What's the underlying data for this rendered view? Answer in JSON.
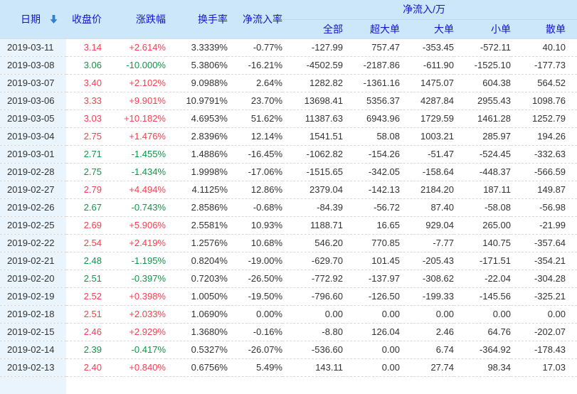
{
  "colors": {
    "up": "#fa3e4d",
    "down": "#0d9748",
    "header_bg": "#cde7fa",
    "header_text": "#1414cc",
    "date_col_bg": "#e9f4fd",
    "arrow": "#2e7fd2"
  },
  "header": {
    "date": "日期",
    "sort_icon": "descending-arrow",
    "close": "收盘价",
    "change": "涨跌幅",
    "turnover": "换手率",
    "inflow_rate": "净流入率",
    "inflow_group": "净流入/万",
    "sub_all": "全部",
    "sub_super_large": "超大单",
    "sub_large": "大单",
    "sub_small": "小单",
    "sub_retail": "散单"
  },
  "rows": [
    {
      "date": "2019-03-11",
      "close": "3.14",
      "change": "+2.614%",
      "turnover": "3.3339%",
      "inflow_rate": "-0.77%",
      "all": "-127.99",
      "super_large": "757.47",
      "large": "-353.45",
      "small": "-572.11",
      "retail": "40.10"
    },
    {
      "date": "2019-03-08",
      "close": "3.06",
      "change": "-10.000%",
      "turnover": "5.3806%",
      "inflow_rate": "-16.21%",
      "all": "-4502.59",
      "super_large": "-2187.86",
      "large": "-611.90",
      "small": "-1525.10",
      "retail": "-177.73"
    },
    {
      "date": "2019-03-07",
      "close": "3.40",
      "change": "+2.102%",
      "turnover": "9.0988%",
      "inflow_rate": "2.64%",
      "all": "1282.82",
      "super_large": "-1361.16",
      "large": "1475.07",
      "small": "604.38",
      "retail": "564.52"
    },
    {
      "date": "2019-03-06",
      "close": "3.33",
      "change": "+9.901%",
      "turnover": "10.9791%",
      "inflow_rate": "23.70%",
      "all": "13698.41",
      "super_large": "5356.37",
      "large": "4287.84",
      "small": "2955.43",
      "retail": "1098.76"
    },
    {
      "date": "2019-03-05",
      "close": "3.03",
      "change": "+10.182%",
      "turnover": "4.6953%",
      "inflow_rate": "51.62%",
      "all": "11387.63",
      "super_large": "6943.96",
      "large": "1729.59",
      "small": "1461.28",
      "retail": "1252.79"
    },
    {
      "date": "2019-03-04",
      "close": "2.75",
      "change": "+1.476%",
      "turnover": "2.8396%",
      "inflow_rate": "12.14%",
      "all": "1541.51",
      "super_large": "58.08",
      "large": "1003.21",
      "small": "285.97",
      "retail": "194.26"
    },
    {
      "date": "2019-03-01",
      "close": "2.71",
      "change": "-1.455%",
      "turnover": "1.4886%",
      "inflow_rate": "-16.45%",
      "all": "-1062.82",
      "super_large": "-154.26",
      "large": "-51.47",
      "small": "-524.45",
      "retail": "-332.63"
    },
    {
      "date": "2019-02-28",
      "close": "2.75",
      "change": "-1.434%",
      "turnover": "1.9998%",
      "inflow_rate": "-17.06%",
      "all": "-1515.65",
      "super_large": "-342.05",
      "large": "-158.64",
      "small": "-448.37",
      "retail": "-566.59"
    },
    {
      "date": "2019-02-27",
      "close": "2.79",
      "change": "+4.494%",
      "turnover": "4.1125%",
      "inflow_rate": "12.86%",
      "all": "2379.04",
      "super_large": "-142.13",
      "large": "2184.20",
      "small": "187.11",
      "retail": "149.87"
    },
    {
      "date": "2019-02-26",
      "close": "2.67",
      "change": "-0.743%",
      "turnover": "2.8586%",
      "inflow_rate": "-0.68%",
      "all": "-84.39",
      "super_large": "-56.72",
      "large": "87.40",
      "small": "-58.08",
      "retail": "-56.98"
    },
    {
      "date": "2019-02-25",
      "close": "2.69",
      "change": "+5.906%",
      "turnover": "2.5581%",
      "inflow_rate": "10.93%",
      "all": "1188.71",
      "super_large": "16.65",
      "large": "929.04",
      "small": "265.00",
      "retail": "-21.99"
    },
    {
      "date": "2019-02-22",
      "close": "2.54",
      "change": "+2.419%",
      "turnover": "1.2576%",
      "inflow_rate": "10.68%",
      "all": "546.20",
      "super_large": "770.85",
      "large": "-7.77",
      "small": "140.75",
      "retail": "-357.64"
    },
    {
      "date": "2019-02-21",
      "close": "2.48",
      "change": "-1.195%",
      "turnover": "0.8204%",
      "inflow_rate": "-19.00%",
      "all": "-629.70",
      "super_large": "101.45",
      "large": "-205.43",
      "small": "-171.51",
      "retail": "-354.21"
    },
    {
      "date": "2019-02-20",
      "close": "2.51",
      "change": "-0.397%",
      "turnover": "0.7203%",
      "inflow_rate": "-26.50%",
      "all": "-772.92",
      "super_large": "-137.97",
      "large": "-308.62",
      "small": "-22.04",
      "retail": "-304.28"
    },
    {
      "date": "2019-02-19",
      "close": "2.52",
      "change": "+0.398%",
      "turnover": "1.0050%",
      "inflow_rate": "-19.50%",
      "all": "-796.60",
      "super_large": "-126.50",
      "large": "-199.33",
      "small": "-145.56",
      "retail": "-325.21"
    },
    {
      "date": "2019-02-18",
      "close": "2.51",
      "change": "+2.033%",
      "turnover": "1.0690%",
      "inflow_rate": "0.00%",
      "all": "0.00",
      "super_large": "0.00",
      "large": "0.00",
      "small": "0.00",
      "retail": "0.00"
    },
    {
      "date": "2019-02-15",
      "close": "2.46",
      "change": "+2.929%",
      "turnover": "1.3680%",
      "inflow_rate": "-0.16%",
      "all": "-8.80",
      "super_large": "126.04",
      "large": "2.46",
      "small": "64.76",
      "retail": "-202.07"
    },
    {
      "date": "2019-02-14",
      "close": "2.39",
      "change": "-0.417%",
      "turnover": "0.5327%",
      "inflow_rate": "-26.07%",
      "all": "-536.60",
      "super_large": "0.00",
      "large": "6.74",
      "small": "-364.92",
      "retail": "-178.43"
    },
    {
      "date": "2019-02-13",
      "close": "2.40",
      "change": "+0.840%",
      "turnover": "0.6756%",
      "inflow_rate": "5.49%",
      "all": "143.11",
      "super_large": "0.00",
      "large": "27.74",
      "small": "98.34",
      "retail": "17.03"
    }
  ]
}
